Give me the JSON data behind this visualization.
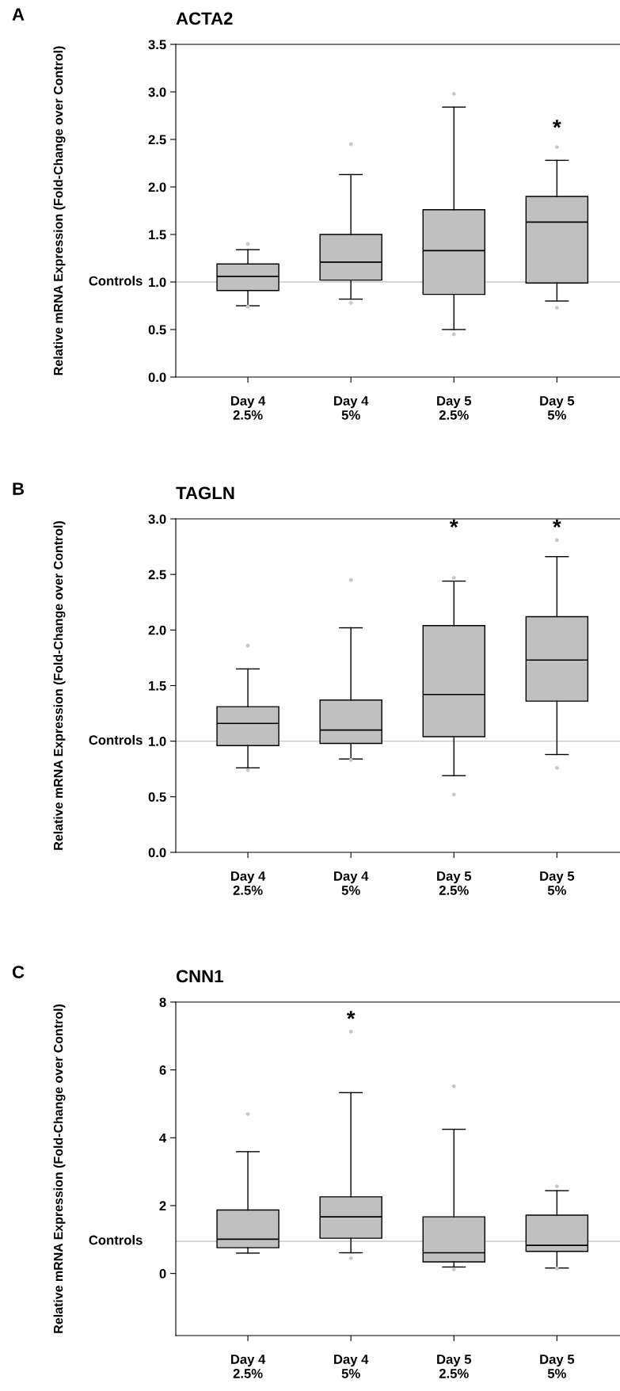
{
  "chart_data": [
    {
      "type": "box",
      "title": "ACTA2",
      "ylabel": "Relative mRNA Expression (Fold-Change over Control)",
      "categories": [
        "Day 4\n2.5%",
        "Day 4\n5%",
        "Day 5\n2.5%",
        "Day 5\n5%"
      ],
      "color": "#c0c0c0",
      "ylim": [
        0,
        3.5
      ],
      "yticks": [
        {
          "value": 0,
          "label": "0.0"
        },
        {
          "value": 0.5,
          "label": "0.5"
        },
        {
          "value": 1,
          "label": "1.0"
        },
        {
          "value": 1.5,
          "label": "1.5"
        },
        {
          "value": 2,
          "label": "2.0"
        },
        {
          "value": 2.5,
          "label": "2.5"
        },
        {
          "value": 3,
          "label": "3.0"
        },
        {
          "value": 3.5,
          "label": "3.5"
        }
      ],
      "grid": false,
      "boxes": [
        {
          "low": 0.75,
          "q1": 0.91,
          "median": 1.06,
          "q3": 1.19,
          "high": 1.34,
          "outliers": [
            1.4,
            0.74
          ]
        },
        {
          "low": 0.82,
          "q1": 1.02,
          "median": 1.21,
          "q3": 1.5,
          "high": 2.13,
          "outliers": [
            2.45,
            0.78
          ]
        },
        {
          "low": 0.5,
          "q1": 0.87,
          "median": 1.33,
          "q3": 1.76,
          "high": 2.84,
          "outliers": [
            2.98,
            0.45
          ]
        },
        {
          "low": 0.8,
          "q1": 0.99,
          "median": 1.63,
          "q3": 1.9,
          "high": 2.28,
          "outliers": [
            2.42,
            0.73
          ]
        }
      ],
      "ref_lines": [
        {
          "axis": "y",
          "value": 1,
          "label": "Controls",
          "color": "#c8c8c8"
        }
      ],
      "annotations": [
        "A",
        "*"
      ]
    },
    {
      "type": "box",
      "title": "TAGLN",
      "ylabel": "Relative mRNA Expression (Fold-Change over Control)",
      "categories": [
        "Day 4\n2.5%",
        "Day 4\n5%",
        "Day 5\n2.5%",
        "Day 5\n5%"
      ],
      "color": "#c0c0c0",
      "ylim": [
        0,
        3
      ],
      "yticks": [
        {
          "value": 0,
          "label": "0.0"
        },
        {
          "value": 0.5,
          "label": "0.5"
        },
        {
          "value": 1,
          "label": "1.0"
        },
        {
          "value": 1.5,
          "label": "1.5"
        },
        {
          "value": 2,
          "label": "2.0"
        },
        {
          "value": 2.5,
          "label": "2.5"
        },
        {
          "value": 3,
          "label": "3.0"
        }
      ],
      "grid": false,
      "boxes": [
        {
          "low": 0.76,
          "q1": 0.96,
          "median": 1.16,
          "q3": 1.31,
          "high": 1.65,
          "outliers": [
            1.86,
            0.74
          ]
        },
        {
          "low": 0.84,
          "q1": 0.98,
          "median": 1.1,
          "q3": 1.37,
          "high": 2.02,
          "outliers": [
            2.45,
            0.83
          ]
        },
        {
          "low": 0.69,
          "q1": 1.04,
          "median": 1.42,
          "q3": 2.04,
          "high": 2.44,
          "outliers": [
            2.47,
            0.52
          ]
        },
        {
          "low": 0.88,
          "q1": 1.36,
          "median": 1.73,
          "q3": 2.12,
          "high": 2.66,
          "outliers": [
            2.81,
            0.76
          ]
        }
      ],
      "ref_lines": [
        {
          "axis": "y",
          "value": 1,
          "label": "Controls",
          "color": "#c8c8c8"
        }
      ],
      "annotations": [
        "B",
        "*",
        "*"
      ]
    },
    {
      "type": "box",
      "title": "CNN1",
      "ylabel": "Relative mRNA Expression (Fold-Change over Control)",
      "categories": [
        "Day 4\n2.5%",
        "Day 4\n5%",
        "Day 5\n2.5%",
        "Day 5\n5%"
      ],
      "color": "#c0c0c0",
      "ylim": [
        -1.83,
        8
      ],
      "yticks": [
        0,
        2,
        4,
        6,
        8
      ],
      "grid": false,
      "boxes": [
        {
          "low": 0.6,
          "q1": 0.76,
          "median": 1.01,
          "q3": 1.87,
          "high": 3.59,
          "outliers": [
            4.7
          ]
        },
        {
          "low": 0.61,
          "q1": 1.04,
          "median": 1.67,
          "q3": 2.26,
          "high": 5.33,
          "outliers": [
            7.13,
            0.45
          ]
        },
        {
          "low": 0.19,
          "q1": 0.34,
          "median": 0.61,
          "q3": 1.67,
          "high": 4.25,
          "outliers": [
            5.52,
            0.12
          ]
        },
        {
          "low": 0.16,
          "q1": 0.65,
          "median": 0.83,
          "q3": 1.72,
          "high": 2.44,
          "outliers": [
            2.57,
            0.14
          ]
        }
      ],
      "ref_lines": [
        {
          "axis": "y",
          "value": 0.95,
          "label": "Controls",
          "color": "#c8c8c8"
        }
      ],
      "annotations": [
        "C",
        "*"
      ]
    }
  ]
}
